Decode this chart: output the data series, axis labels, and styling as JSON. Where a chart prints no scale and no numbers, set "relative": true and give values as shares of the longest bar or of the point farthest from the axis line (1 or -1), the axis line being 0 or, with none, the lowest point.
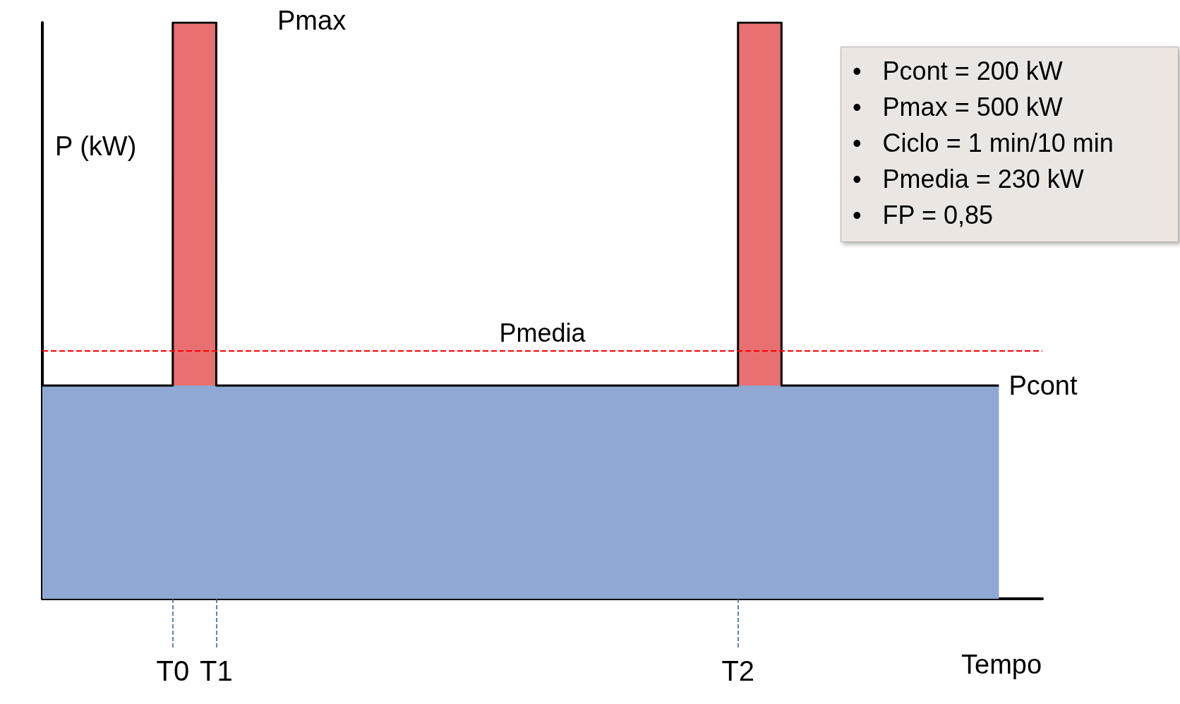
{
  "chart_data": {
    "type": "step",
    "relative": true,
    "xlabel": "Tempo",
    "ylabel": "P (kW)",
    "categories": [
      null,
      null,
      null,
      "T0",
      "T1",
      null,
      null,
      null,
      null,
      null,
      null,
      null,
      null,
      null,
      null,
      null,
      "T2",
      null,
      null,
      null,
      null,
      null,
      null,
      null
    ],
    "series": [
      {
        "type": "area",
        "color": "#e87070",
        "values": [
          null,
          null,
          null,
          1,
          1,
          null,
          null,
          null,
          null,
          null,
          null,
          null,
          null,
          null,
          null,
          null,
          1,
          1,
          null,
          null,
          null,
          null,
          null,
          null
        ]
      },
      {
        "type": "area",
        "color": "#8fa8d4",
        "values": [
          0.37,
          0.37,
          0.37,
          0.37,
          0.37,
          0.37,
          0.37,
          0.37,
          0.37,
          0.37,
          0.37,
          0.37,
          0.37,
          0.37,
          0.37,
          0.37,
          0.37,
          0.37,
          0.37,
          0.37,
          0.37,
          0.37,
          0.37,
          null
        ]
      },
      {
        "color": "#000000",
        "values": [
          0.37,
          0.37,
          0.37,
          1,
          0.37,
          0.37,
          0.37,
          0.37,
          0.37,
          0.37,
          0.37,
          0.37,
          0.37,
          0.37,
          0.37,
          0.37,
          1,
          0.37,
          0.37,
          0.37,
          0.37,
          0.37,
          0.37,
          null
        ]
      }
    ],
    "ref_lines": [
      {
        "axis": "y",
        "value": 0.43,
        "label": "Pmedia",
        "color": "#ff0000",
        "line_style": "dashed"
      }
    ],
    "annotations": [
      "Pmax",
      "Pcont",
      "•   Pcont = 200 kW",
      "•   Pmax = 500 kW",
      "•   Ciclo = 1 min/10 min",
      "•   Pmedia = 230 kW",
      "•   FP = 0,85"
    ],
    "grid": false,
    "line_style": "solid",
    "marker": "none"
  }
}
